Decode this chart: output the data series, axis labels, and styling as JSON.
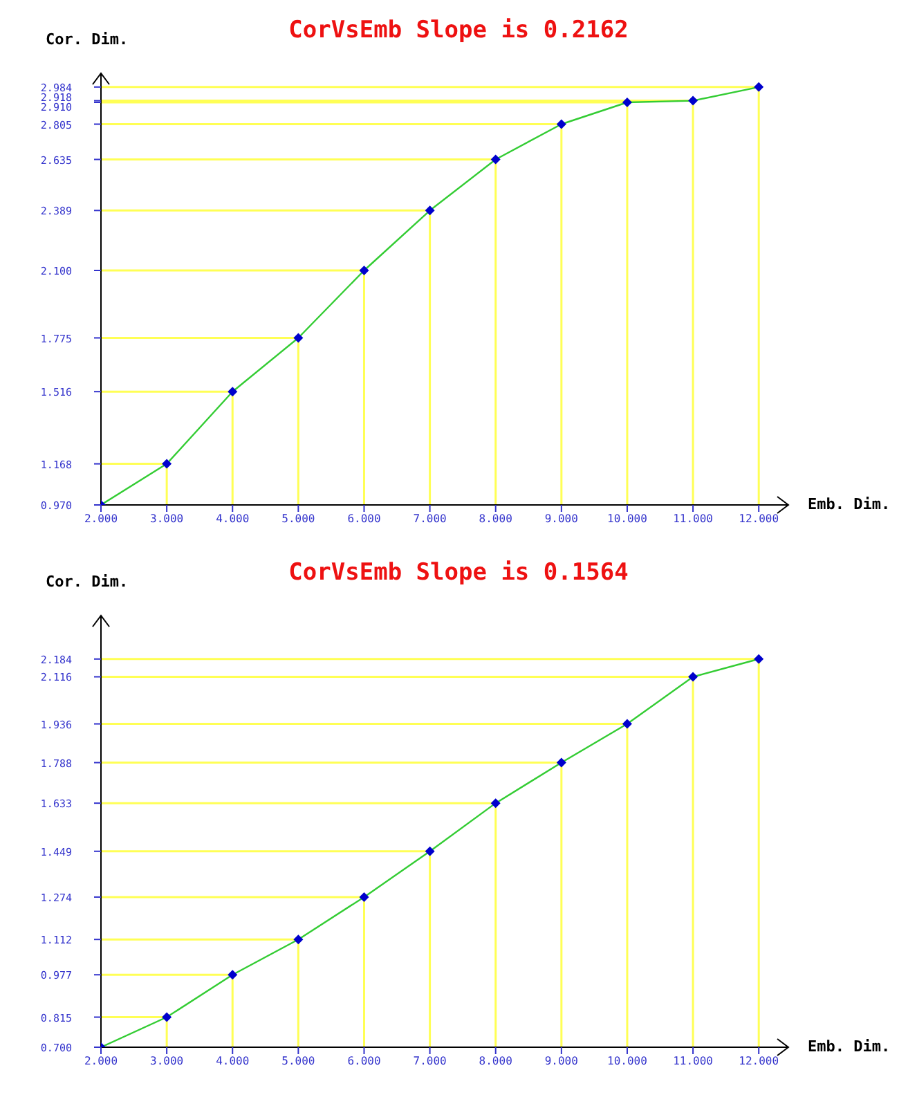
{
  "chart_data": [
    {
      "type": "line",
      "title": "CorVsEmb Slope is 0.2162",
      "xlabel": "Emb. Dim.",
      "ylabel": "Cor. Dim.",
      "x": [
        2,
        3,
        4,
        5,
        6,
        7,
        8,
        9,
        10,
        11,
        12
      ],
      "series": [
        {
          "color": "#ffff55",
          "marker": "none",
          "x": [
            2,
            3
          ],
          "values": [
            1.168,
            1.168
          ]
        },
        {
          "color": "#ffff55",
          "marker": "none",
          "x": [
            3,
            3
          ],
          "values": [
            0.97,
            1.168
          ]
        },
        {
          "color": "#ffff55",
          "marker": "none",
          "x": [
            2,
            4
          ],
          "values": [
            1.516,
            1.516
          ]
        },
        {
          "color": "#ffff55",
          "marker": "none",
          "x": [
            4,
            4
          ],
          "values": [
            0.97,
            1.516
          ]
        },
        {
          "color": "#ffff55",
          "marker": "none",
          "x": [
            2,
            5
          ],
          "values": [
            1.775,
            1.775
          ]
        },
        {
          "color": "#ffff55",
          "marker": "none",
          "x": [
            5,
            5
          ],
          "values": [
            0.97,
            1.775
          ]
        },
        {
          "color": "#ffff55",
          "marker": "none",
          "x": [
            2,
            6
          ],
          "values": [
            2.1,
            2.1
          ]
        },
        {
          "color": "#ffff55",
          "marker": "none",
          "x": [
            6,
            6
          ],
          "values": [
            0.97,
            2.1
          ]
        },
        {
          "color": "#ffff55",
          "marker": "none",
          "x": [
            2,
            7
          ],
          "values": [
            2.389,
            2.389
          ]
        },
        {
          "color": "#ffff55",
          "marker": "none",
          "x": [
            7,
            7
          ],
          "values": [
            0.97,
            2.389
          ]
        },
        {
          "color": "#ffff55",
          "marker": "none",
          "x": [
            2,
            8
          ],
          "values": [
            2.635,
            2.635
          ]
        },
        {
          "color": "#ffff55",
          "marker": "none",
          "x": [
            8,
            8
          ],
          "values": [
            0.97,
            2.635
          ]
        },
        {
          "color": "#ffff55",
          "marker": "none",
          "x": [
            2,
            9
          ],
          "values": [
            2.805,
            2.805
          ]
        },
        {
          "color": "#ffff55",
          "marker": "none",
          "x": [
            9,
            9
          ],
          "values": [
            0.97,
            2.805
          ]
        },
        {
          "color": "#ffff55",
          "marker": "none",
          "x": [
            2,
            10
          ],
          "values": [
            2.91,
            2.91
          ]
        },
        {
          "color": "#ffff55",
          "marker": "none",
          "x": [
            10,
            10
          ],
          "values": [
            0.97,
            2.91
          ]
        },
        {
          "color": "#ffff55",
          "marker": "none",
          "x": [
            2,
            11
          ],
          "values": [
            2.918,
            2.918
          ]
        },
        {
          "color": "#ffff55",
          "marker": "none",
          "x": [
            11,
            11
          ],
          "values": [
            0.97,
            2.918
          ]
        },
        {
          "color": "#ffff55",
          "marker": "none",
          "x": [
            2,
            12
          ],
          "values": [
            2.984,
            2.984
          ]
        },
        {
          "color": "#ffff55",
          "marker": "none",
          "x": [
            12,
            12
          ],
          "values": [
            0.97,
            2.984
          ]
        },
        {
          "color": "#33cc33",
          "colors": [
            "#0000cc",
            "#0000cc",
            "#0000cc",
            "#0000cc",
            "#0000cc",
            "#0000cc",
            "#0000cc",
            "#0000cc",
            "#0000cc",
            "#0000cc",
            "#0000cc"
          ],
          "values": [
            0.97,
            1.168,
            1.516,
            1.775,
            2.1,
            2.389,
            2.635,
            2.805,
            2.91,
            2.918,
            2.984
          ]
        }
      ],
      "xlim": [
        2,
        12.45
      ],
      "ylim": [
        0.97,
        3.05
      ],
      "xticks": [
        {
          "value": 2,
          "label": "2.000"
        },
        {
          "value": 3,
          "label": "3.000"
        },
        {
          "value": 4,
          "label": "4.000"
        },
        {
          "value": 5,
          "label": "5.000"
        },
        {
          "value": 6,
          "label": "6.000"
        },
        {
          "value": 7,
          "label": "7.000"
        },
        {
          "value": 8,
          "label": "8.000"
        },
        {
          "value": 9,
          "label": "9.000"
        },
        {
          "value": 10,
          "label": "10.000"
        },
        {
          "value": 11,
          "label": "11.000"
        },
        {
          "value": 12,
          "label": "12.000"
        }
      ],
      "yticks": [
        {
          "value": 0.97,
          "label": "0.970"
        },
        1.168,
        1.516,
        1.775,
        {
          "value": 2.1,
          "label": "2.100"
        },
        2.389,
        2.635,
        2.805,
        {
          "value": 2.91,
          "label": "2.910"
        },
        2.918,
        2.984
      ],
      "marker": "diamond"
    },
    {
      "type": "line",
      "title": "CorVsEmb Slope is 0.1564",
      "xlabel": "Emb. Dim.",
      "ylabel": "Cor. Dim.",
      "x": [
        2,
        3,
        4,
        5,
        6,
        7,
        8,
        9,
        10,
        11,
        12
      ],
      "series": [
        {
          "color": "#ffff55",
          "marker": "none",
          "x": [
            2,
            3
          ],
          "values": [
            0.815,
            0.815
          ]
        },
        {
          "color": "#ffff55",
          "marker": "none",
          "x": [
            3,
            3
          ],
          "values": [
            0.7,
            0.815
          ]
        },
        {
          "color": "#ffff55",
          "marker": "none",
          "x": [
            2,
            4
          ],
          "values": [
            0.977,
            0.977
          ]
        },
        {
          "color": "#ffff55",
          "marker": "none",
          "x": [
            4,
            4
          ],
          "values": [
            0.7,
            0.977
          ]
        },
        {
          "color": "#ffff55",
          "marker": "none",
          "x": [
            2,
            5
          ],
          "values": [
            1.112,
            1.112
          ]
        },
        {
          "color": "#ffff55",
          "marker": "none",
          "x": [
            5,
            5
          ],
          "values": [
            0.7,
            1.112
          ]
        },
        {
          "color": "#ffff55",
          "marker": "none",
          "x": [
            2,
            6
          ],
          "values": [
            1.274,
            1.274
          ]
        },
        {
          "color": "#ffff55",
          "marker": "none",
          "x": [
            6,
            6
          ],
          "values": [
            0.7,
            1.274
          ]
        },
        {
          "color": "#ffff55",
          "marker": "none",
          "x": [
            2,
            7
          ],
          "values": [
            1.449,
            1.449
          ]
        },
        {
          "color": "#ffff55",
          "marker": "none",
          "x": [
            7,
            7
          ],
          "values": [
            0.7,
            1.449
          ]
        },
        {
          "color": "#ffff55",
          "marker": "none",
          "x": [
            2,
            8
          ],
          "values": [
            1.633,
            1.633
          ]
        },
        {
          "color": "#ffff55",
          "marker": "none",
          "x": [
            8,
            8
          ],
          "values": [
            0.7,
            1.633
          ]
        },
        {
          "color": "#ffff55",
          "marker": "none",
          "x": [
            2,
            9
          ],
          "values": [
            1.788,
            1.788
          ]
        },
        {
          "color": "#ffff55",
          "marker": "none",
          "x": [
            9,
            9
          ],
          "values": [
            0.7,
            1.788
          ]
        },
        {
          "color": "#ffff55",
          "marker": "none",
          "x": [
            2,
            10
          ],
          "values": [
            1.936,
            1.936
          ]
        },
        {
          "color": "#ffff55",
          "marker": "none",
          "x": [
            10,
            10
          ],
          "values": [
            0.7,
            1.936
          ]
        },
        {
          "color": "#ffff55",
          "marker": "none",
          "x": [
            2,
            11
          ],
          "values": [
            2.116,
            2.116
          ]
        },
        {
          "color": "#ffff55",
          "marker": "none",
          "x": [
            11,
            11
          ],
          "values": [
            0.7,
            2.116
          ]
        },
        {
          "color": "#ffff55",
          "marker": "none",
          "x": [
            2,
            12
          ],
          "values": [
            2.184,
            2.184
          ]
        },
        {
          "color": "#ffff55",
          "marker": "none",
          "x": [
            12,
            12
          ],
          "values": [
            0.7,
            2.184
          ]
        },
        {
          "color": "#33cc33",
          "colors": [
            "#0000cc",
            "#0000cc",
            "#0000cc",
            "#0000cc",
            "#0000cc",
            "#0000cc",
            "#0000cc",
            "#0000cc",
            "#0000cc",
            "#0000cc",
            "#0000cc"
          ],
          "values": [
            0.7,
            0.815,
            0.977,
            1.112,
            1.274,
            1.449,
            1.633,
            1.788,
            1.936,
            2.116,
            2.184
          ]
        }
      ],
      "xlim": [
        2,
        12.45
      ],
      "ylim": [
        0.7,
        2.35
      ],
      "xticks": [
        {
          "value": 2,
          "label": "2.000"
        },
        {
          "value": 3,
          "label": "3.000"
        },
        {
          "value": 4,
          "label": "4.000"
        },
        {
          "value": 5,
          "label": "5.000"
        },
        {
          "value": 6,
          "label": "6.000"
        },
        {
          "value": 7,
          "label": "7.000"
        },
        {
          "value": 8,
          "label": "8.000"
        },
        {
          "value": 9,
          "label": "9.000"
        },
        {
          "value": 10,
          "label": "10.000"
        },
        {
          "value": 11,
          "label": "11.000"
        },
        {
          "value": 12,
          "label": "12.000"
        }
      ],
      "yticks": [
        {
          "value": 0.7,
          "label": "0.700"
        },
        0.815,
        0.977,
        1.112,
        1.274,
        1.449,
        1.633,
        1.788,
        1.936,
        2.116,
        2.184
      ],
      "marker": "diamond"
    }
  ]
}
